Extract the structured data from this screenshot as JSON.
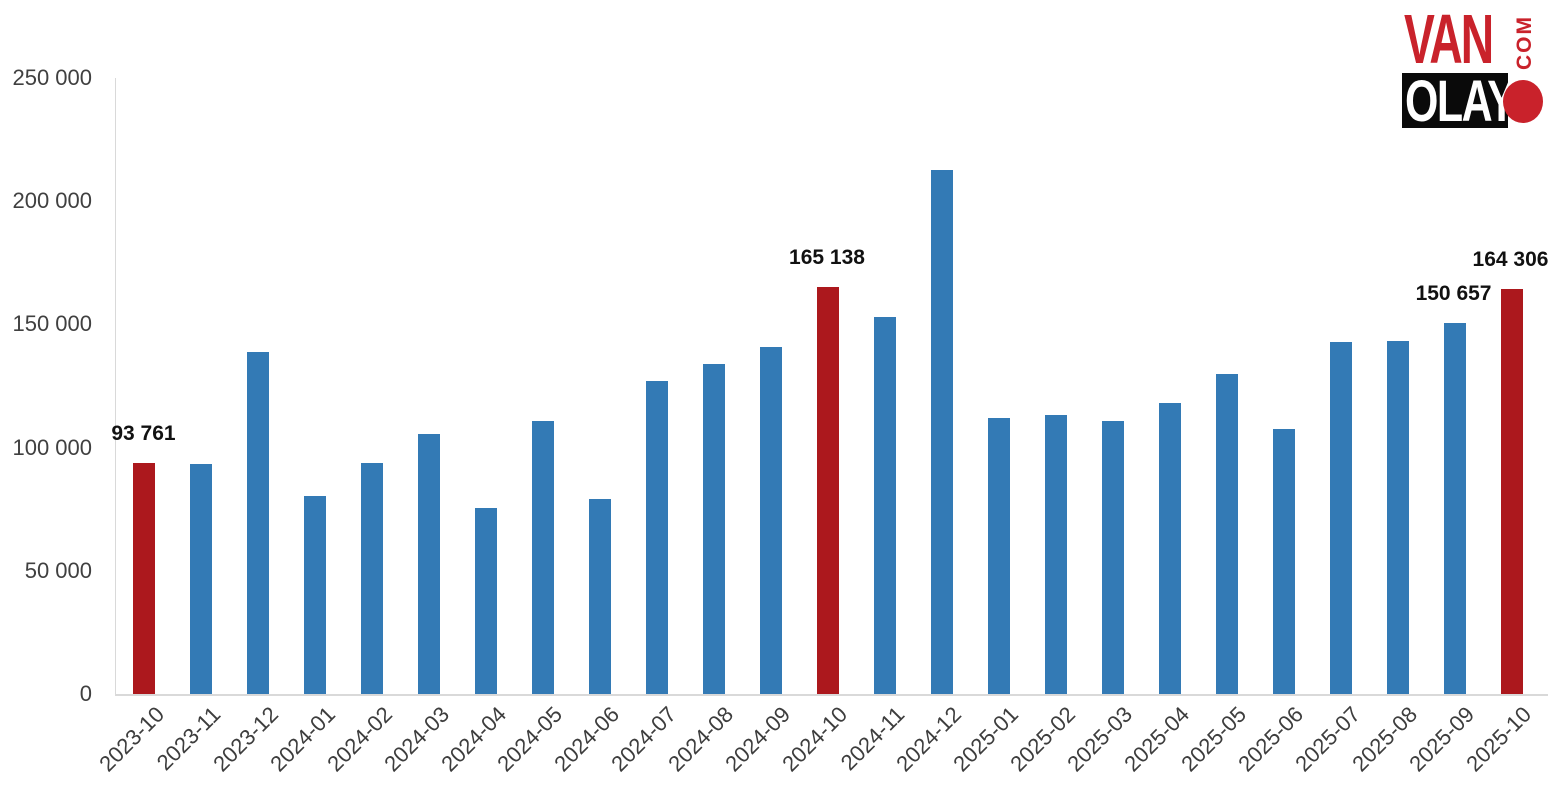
{
  "logo": {
    "van": "VAN",
    "com": "COM",
    "olay": "OLAY",
    "red": "#C9222B",
    "black": "#0a0a0a"
  },
  "chart_data": {
    "type": "bar",
    "title": "",
    "xlabel": "",
    "ylabel": "",
    "categories": [
      "2023-10",
      "2023-11",
      "2023-12",
      "2024-01",
      "2024-02",
      "2024-03",
      "2024-04",
      "2024-05",
      "2024-06",
      "2024-07",
      "2024-08",
      "2024-09",
      "2024-10",
      "2024-11",
      "2024-12",
      "2025-01",
      "2025-02",
      "2025-03",
      "2025-04",
      "2025-05",
      "2025-06",
      "2025-07",
      "2025-08",
      "2025-09",
      "2025-10"
    ],
    "values": [
      93761,
      93300,
      138800,
      80500,
      93900,
      105500,
      75400,
      110900,
      79300,
      127000,
      134000,
      140800,
      165138,
      153100,
      212700,
      112000,
      113200,
      110800,
      118200,
      129900,
      107700,
      142800,
      143400,
      150657,
      164306
    ],
    "bar_color": "#337AB5",
    "highlight_color": "#AC181D",
    "highlight_indices": [
      0,
      12,
      24
    ],
    "data_labels": {
      "0": "93 761",
      "12": "165 138",
      "23": "150 657",
      "24": "164 306"
    },
    "y_tick_labels": [
      "0",
      "50 000",
      "100 000",
      "150 000",
      "200 000",
      "250 000"
    ],
    "y_tick_values": [
      0,
      50000,
      100000,
      150000,
      200000,
      250000
    ],
    "ylim": [
      0,
      250000
    ],
    "grid": false,
    "legend": false,
    "x_label_rotation": -45,
    "axis_color": "#d9d9d9"
  }
}
